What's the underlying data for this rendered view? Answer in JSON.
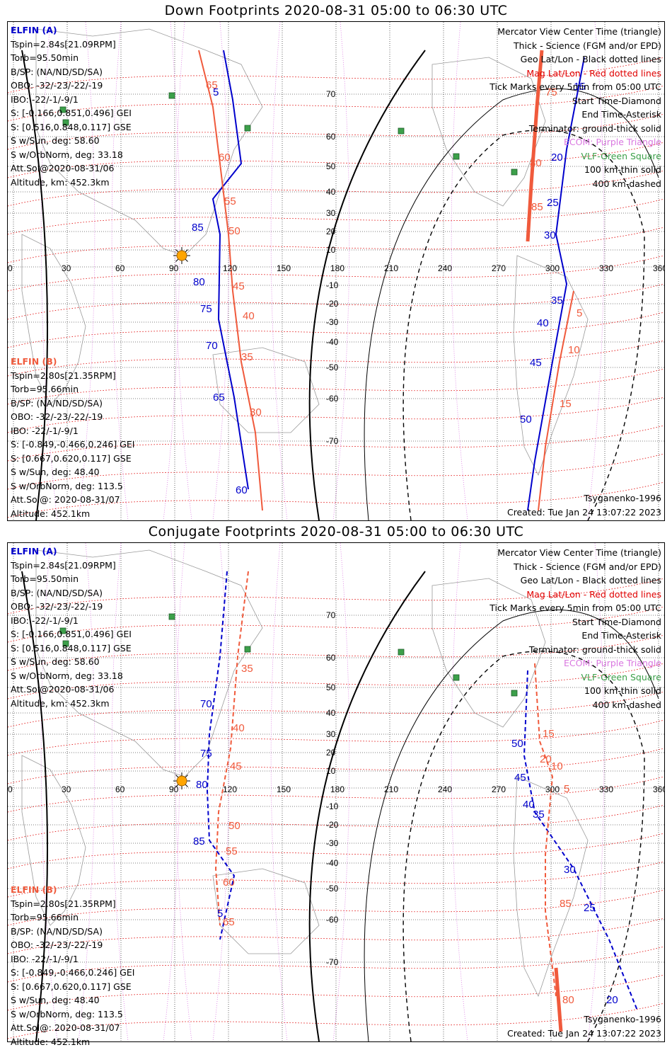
{
  "panels": [
    {
      "id": "down",
      "title": "Down Footprints 2020-08-31 05:00 to 06:30 UTC",
      "elfin_a": {
        "header": "ELFIN (A)",
        "lines": [
          "Tspin=2.84s[21.09RPM]",
          "Torb=95.50min",
          "B/SP: (NA/ND/SD/SA)",
          "OBO: -32/-23/-22/-19",
          "IBO: -22/-1/-9/1",
          "S: [-0.166,0.851,0.496] GEI",
          "S: [0.516,0.848,0.117] GSE",
          "S w/Sun, deg: 58.60",
          "S w/OrbNorm, deg: 33.18",
          "Att.Sol@2020-08-31/06",
          "Altitude, km: 452.3km"
        ]
      },
      "elfin_b": {
        "header": "ELFIN (B)",
        "lines": [
          "Tspin=2.80s[21.35RPM]",
          "Torb=95.66min",
          "B/SP: (NA/ND/SD/SA)",
          "OBO: -32/-23/-22/-19",
          "IBO: -22/-1/-9/1",
          "S: [-0.849,-0.466,0.246] GEI",
          "S: [0.667,0.620,0.117] GSE",
          "S w/Sun, deg: 48.40",
          "S w/OrbNorm, deg: 113.5",
          "Att.Sol@: 2020-08-31/07",
          "Altitude: 452.1km"
        ]
      },
      "legend": [
        "Mercator View Center Time (triangle)",
        "Thick - Science (FGM and/or EPD)",
        "Geo Lat/Lon - Black dotted lines",
        "Mag Lat/Lon - Red dotted lines",
        "Tick Marks every 5min from 05:00 UTC",
        "Start Time-Diamond",
        "End Time-Asterisk",
        "Terminator: ground-thick solid",
        "ECOM: Purple Triangle",
        "VLF-Green Square",
        "100 km-thin solid",
        "400 km-dashed"
      ],
      "model": "Tsyganenko-1996",
      "created": "Created: Tue Jan 24 13:07:22 2023",
      "track_a_labels": [
        "5",
        "85",
        "80",
        "75",
        "70",
        "65",
        "60",
        "15",
        "20",
        "25",
        "30",
        "35",
        "40",
        "45",
        "50"
      ],
      "track_b_labels": [
        "65",
        "60",
        "55",
        "50",
        "45",
        "40",
        "35",
        "30",
        "75",
        "80",
        "85",
        "5",
        "10",
        "15"
      ]
    },
    {
      "id": "conj",
      "title": "Conjugate Footprints 2020-08-31 05:00 to 06:30 UTC",
      "elfin_a": {
        "header": "ELFIN (A)",
        "lines": [
          "Tspin=2.84s[21.09RPM]",
          "Torb=95.50min",
          "B/SP: (NA/ND/SD/SA)",
          "OBO: -32/-23/-22/-19",
          "IBO: -22/-1/-9/1",
          "S: [-0.166,0.851,0.496] GEI",
          "S: [0.516,0.848,0.117] GSE",
          "S w/Sun, deg: 58.60",
          "S w/OrbNorm, deg: 33.18",
          "Att.Sol@2020-08-31/06",
          "Altitude, km: 452.3km"
        ]
      },
      "elfin_b": {
        "header": "ELFIN (B)",
        "lines": [
          "Tspin=2.80s[21.35RPM]",
          "Torb=95.66min",
          "B/SP: (NA/ND/SD/SA)",
          "OBO: -32/-23/-22/-19",
          "IBO: -22/-1/-9/1",
          "S: [-0.849,-0.466,0.246] GEI",
          "S: [0.667,0.620,0.117] GSE",
          "S w/Sun, deg: 48.40",
          "S w/OrbNorm, deg: 113.5",
          "Att.Sol@: 2020-08-31/07",
          "Altitude: 452.1km"
        ]
      },
      "legend": [
        "Mercator View Center Time (triangle)",
        "Thick - Science (FGM and/or EPD)",
        "Geo Lat/Lon - Black dotted lines",
        "Mag Lat/Lon - Red dotted lines",
        "Tick Marks every 5min from 05:00 UTC",
        "Start Time-Diamond",
        "End Time-Asterisk",
        "Terminator: ground-thick solid",
        "ECOM: Purple Triangle",
        "VLF-Green Square",
        "100 km-thin solid",
        "400 km-dashed"
      ],
      "model": "Tsyganenko-1996",
      "created": "Created: Tue Jan 24 13:07:22 2023",
      "track_a_labels": [
        "70",
        "75",
        "80",
        "85",
        "5",
        "50",
        "45",
        "40",
        "35",
        "30",
        "25",
        "20"
      ],
      "track_b_labels": [
        "35",
        "40",
        "45",
        "50",
        "55",
        "60",
        "65",
        "20",
        "15",
        "10",
        "5",
        "85",
        "80"
      ]
    }
  ],
  "axes": {
    "lon_ticks": [
      "0",
      "30",
      "60",
      "90",
      "120",
      "150",
      "180",
      "210",
      "240",
      "270",
      "300",
      "330",
      "360"
    ],
    "lat_ticks": [
      "70",
      "60",
      "50",
      "40",
      "30",
      "20",
      "10",
      "-10",
      "-20",
      "-30",
      "-40",
      "-50",
      "-60",
      "-70"
    ]
  },
  "colors": {
    "elfin_a": "#0000cc",
    "elfin_b": "#f05a3c",
    "mag_grid": "#e00000",
    "geo_grid": "#000000",
    "ecom": "#d977e0",
    "vlf": "#3ca04a",
    "sun": "#ffa500"
  }
}
